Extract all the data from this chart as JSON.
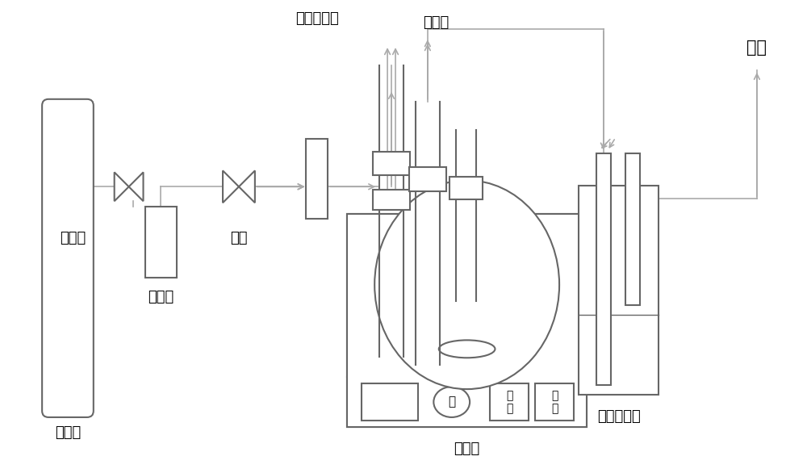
{
  "bg_color": "#ffffff",
  "line_color": "#666666",
  "pipe_color": "#aaaaaa",
  "labels": {
    "nitrogen_tank": "氮气瓶",
    "pressure_reducer": "减压阀",
    "buffer_tank": "缓冲罐",
    "ball_valve": "球阀",
    "flowmeter": "转子流量计",
    "thermometer": "温度计",
    "oil_bath": "油浴锅",
    "absorption_bottle": "氮气吸收瓶",
    "exhaust": "排气",
    "heater": "加\n热",
    "power": "电\n源",
    "change": "变"
  },
  "font_size": 13,
  "fig_width": 10.0,
  "fig_height": 5.86
}
